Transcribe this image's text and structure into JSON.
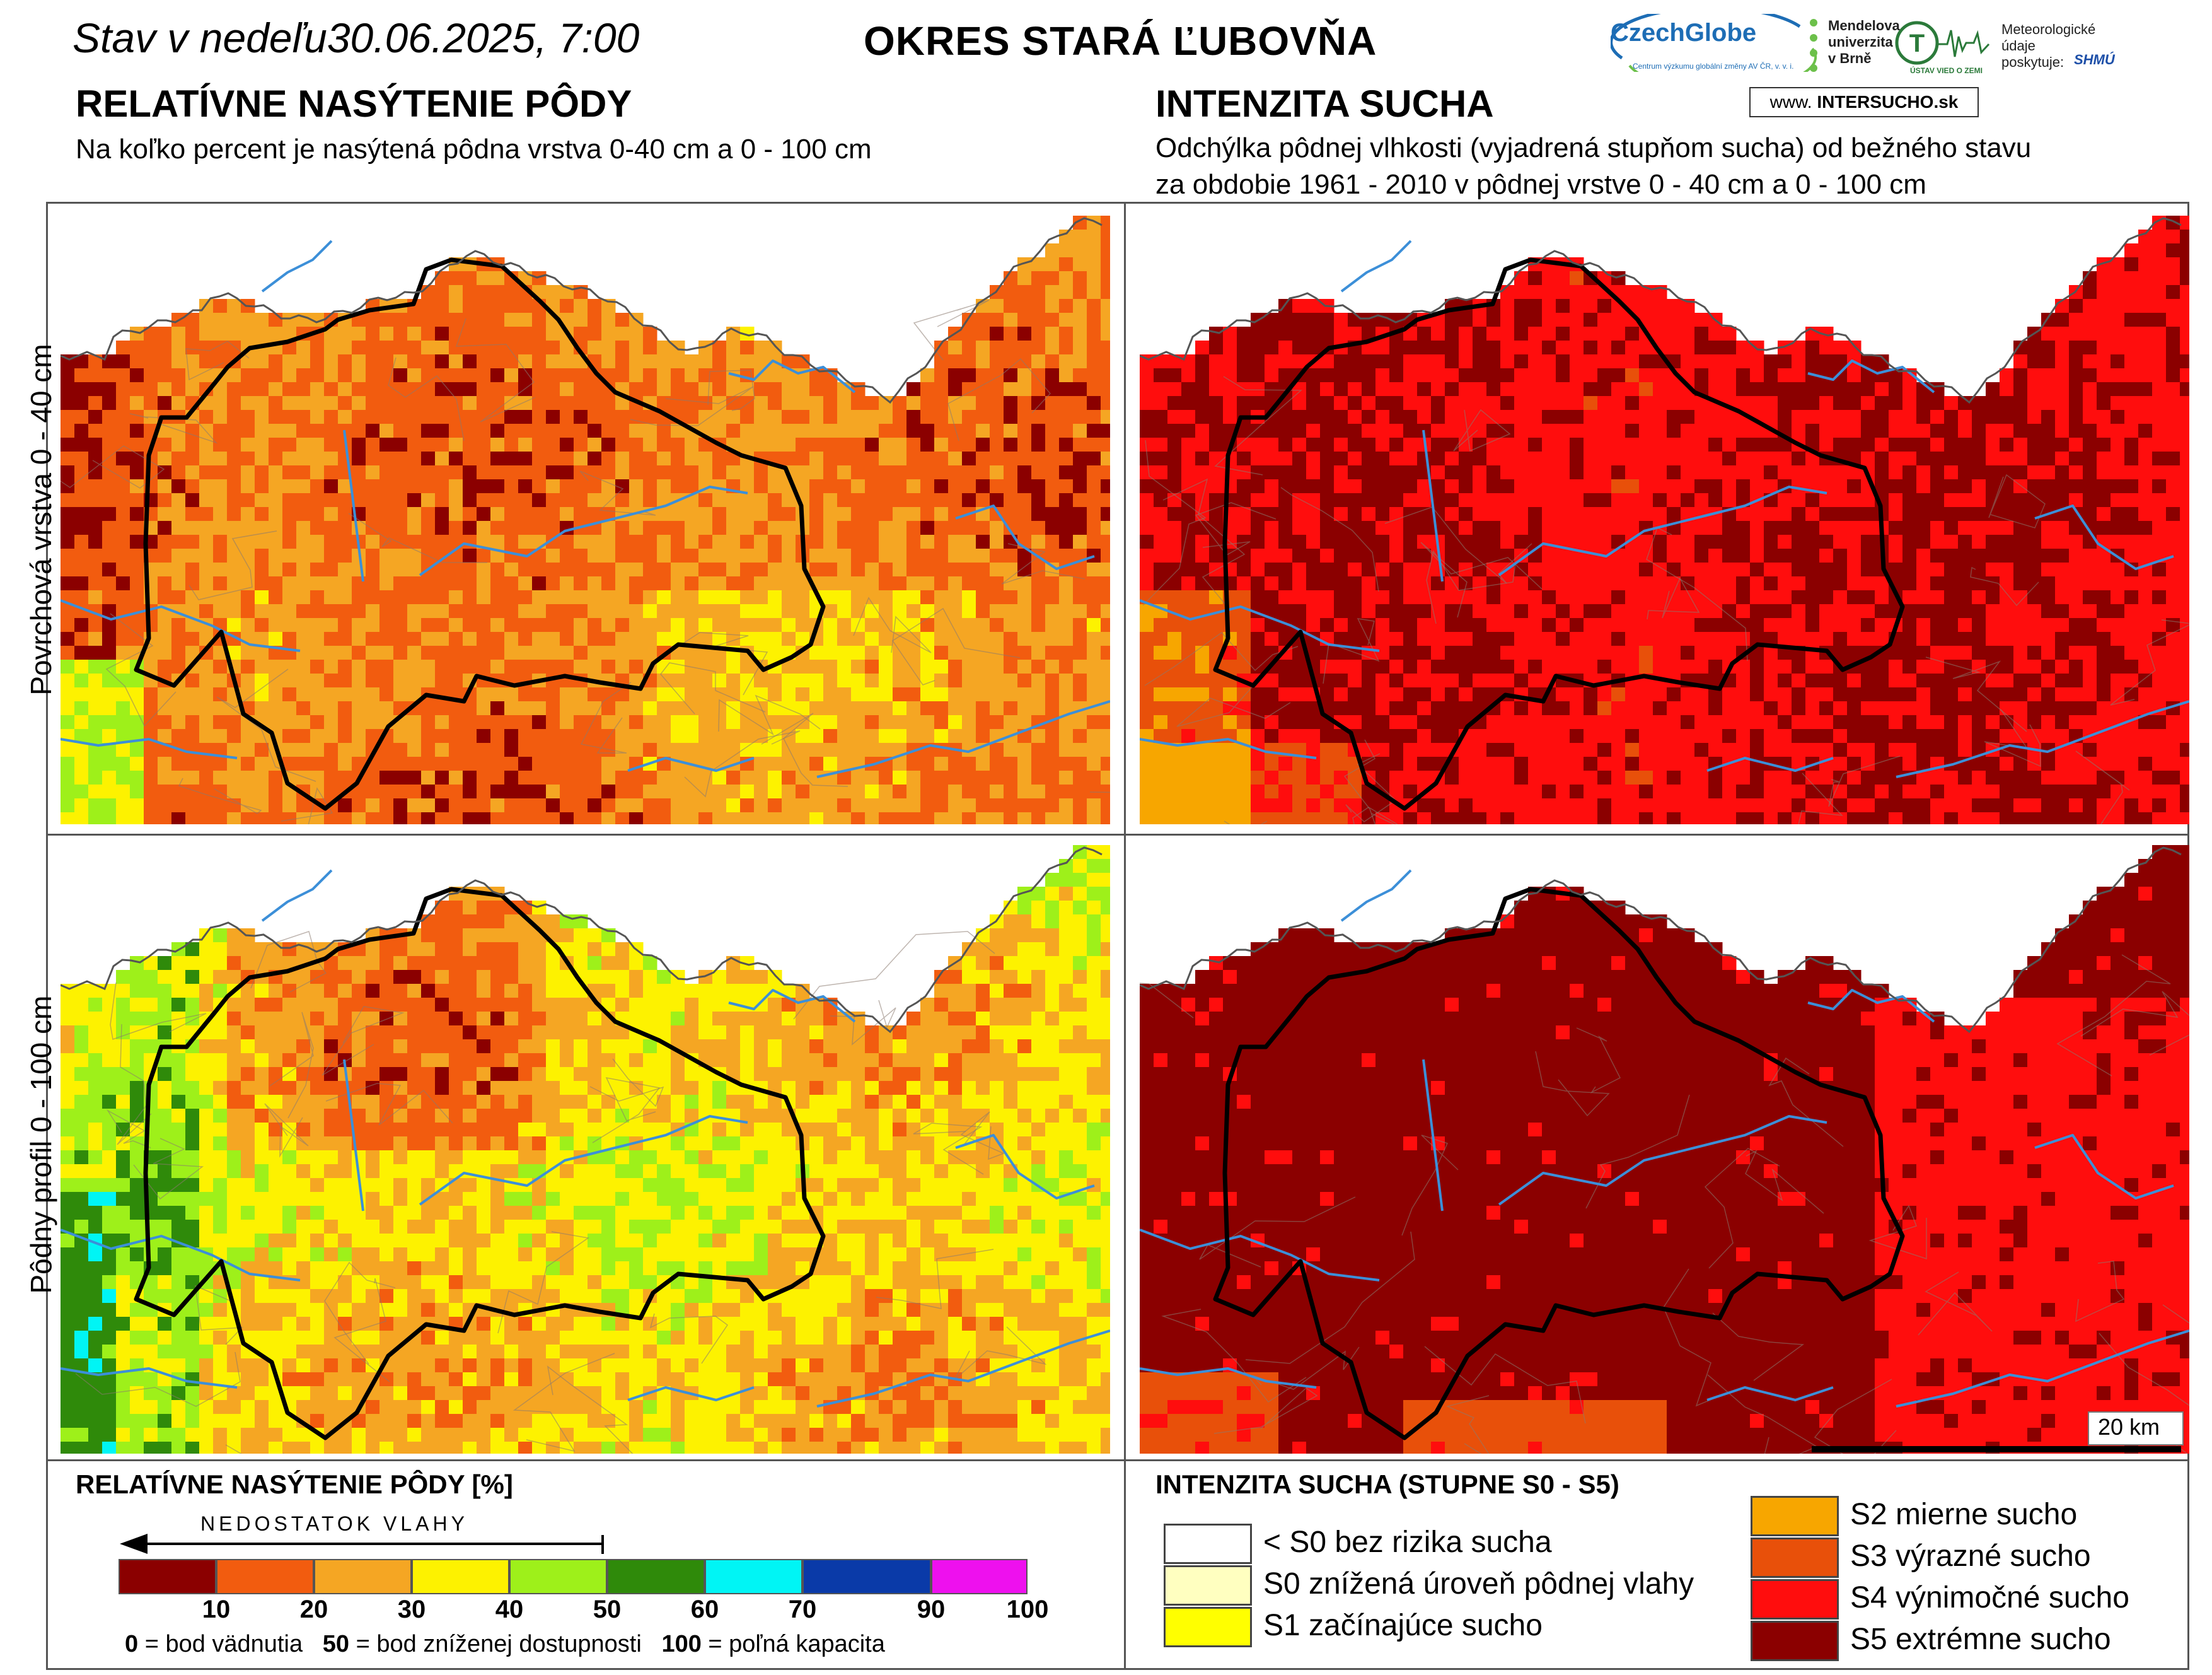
{
  "header": {
    "date": "Stav v nedeľu30.06.2025, 7:00",
    "district": "OKRES  STARÁ ĽUBOVŇA"
  },
  "left": {
    "title": "RELATÍVNE NASÝTENIE PÔDY",
    "subtitle": "Na koľko percent je nasýtená pôdna vrstva 0-40 cm a 0 - 100 cm"
  },
  "right": {
    "title": "INTENZITA SUCHA",
    "subtitle1": "Odchýlka pôdnej vlhkosti (vyjadrená stupňom sucha) od bežného stavu",
    "subtitle2": "za obdobie 1961 - 2010 v pôdnej vrstve 0 - 40 cm a 0 - 100 cm"
  },
  "logos": {
    "czechglobe": "CzechGlobe",
    "czechglobe_sub": "Centrum výzkumu globální změny AV ČR, v. v. i.",
    "mendel": [
      "Mendelova",
      "univerzita",
      "v Brně"
    ],
    "ustav": "ÚSTAV VIED O ZEMI",
    "meteo": [
      "Meteorologické",
      "údaje",
      "poskytuje:"
    ],
    "shmu": "SHMÚ",
    "intersucho_prefix": "www. ",
    "intersucho_main": "INTERSUCHO",
    "intersucho_suffix": ".sk"
  },
  "rows": {
    "top": "Povrchová vrstva 0 - 40 cm",
    "bottom": "Pôdny profil 0 - 100 cm"
  },
  "scale_bar": "20 km",
  "legend_left": {
    "title": "RELATÍVNE NASÝTENIE PÔDY [%]",
    "arrow_label": "NEDOSTATOK VLAHY",
    "colors": [
      "#8b0000",
      "#f25c0f",
      "#f5a623",
      "#fdf200",
      "#9ef01a",
      "#2f8a0a",
      "#00f5f5",
      "#0a3aa8",
      "#ee10ee"
    ],
    "ticks": [
      "10",
      "20",
      "30",
      "40",
      "50",
      "60",
      "70",
      "90",
      "100"
    ],
    "note_0_num": "0",
    "note_0_text": " = bod vädnutia",
    "note_50_num": "50",
    "note_50_text": " = bod zníženej dostupnosti",
    "note_100_num": "100",
    "note_100_text": " = poľná kapacita"
  },
  "legend_right": {
    "title": "INTENZITA SUCHA (STUPNE S0 - S5)",
    "classes": [
      {
        "label": "< S0 bez rizika sucha",
        "color": "#ffffff"
      },
      {
        "label": "S0 znížená úroveň pôdnej vlahy",
        "color": "#ffffc0"
      },
      {
        "label": "S1 začínajúce sucho",
        "color": "#ffff00"
      },
      {
        "label": "S2 mierne sucho",
        "color": "#f7a600"
      },
      {
        "label": "S3 výrazné sucho",
        "color": "#e8500a"
      },
      {
        "label": "S4 výnimočné sucho",
        "color": "#ff0d0d"
      },
      {
        "label": "S5 extrémne sucho",
        "color": "#8b0000"
      }
    ]
  }
}
